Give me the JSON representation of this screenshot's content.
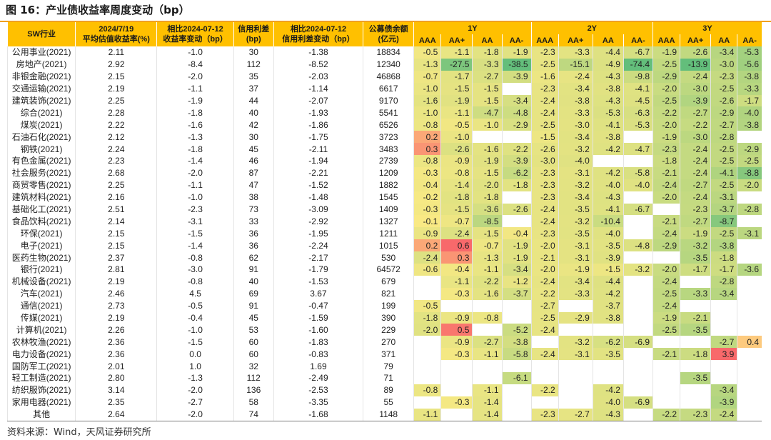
{
  "title": "图 16：产业债收益率周度变动（bp）",
  "source": "资料来源：Wind，天风证券研究所",
  "header": {
    "industry": "SW行业",
    "yield_l1": "2024/7/19",
    "yield_l2": "平均估值收益率(%)",
    "ychg_l1": "相比2024-07-12",
    "ychg_l2": "收益率变动（bp）",
    "spread_l1": "信用利差",
    "spread_l2": "(bp)",
    "schg_l1": "相比2024-07-12",
    "schg_l2": "信用利差变动（bp）",
    "bal_l1": "公募债余额",
    "bal_l2": "(亿元)",
    "groups": [
      "1Y",
      "2Y",
      "3Y"
    ],
    "ratings": [
      "AAA",
      "AA+",
      "AA",
      "AA-"
    ]
  },
  "colors": {
    "header": "#ffc000",
    "scale_min": "#63be7b",
    "scale_mid": "#ffeb84",
    "scale_max": "#f8696b"
  },
  "rows": [
    {
      "name": "公用事业(2021)",
      "yield": "2.11",
      "ychg": "-1.0",
      "spread": "30",
      "schg": "-1.38",
      "bal": "18834",
      "y1": [
        "-0.5",
        "-1.1",
        "-1.8",
        "-1.9"
      ],
      "y2": [
        "-2.3",
        "-3.3",
        "-4.4",
        "-6.7"
      ],
      "y3": [
        "-1.9",
        "-2.6",
        "-3.4",
        "-5.3"
      ]
    },
    {
      "name": "房地产(2021)",
      "yield": "2.92",
      "ychg": "-8.4",
      "spread": "112",
      "schg": "-8.52",
      "bal": "12340",
      "y1": [
        "-1.3",
        "-27.5",
        "-3.3",
        "-38.5"
      ],
      "y2": [
        "-2.5",
        "-15.1",
        "-4.9",
        "-74.4"
      ],
      "y3": [
        "-2.5",
        "-13.9",
        "-3.0",
        "-5.6"
      ]
    },
    {
      "name": "非银金融(2021)",
      "yield": "2.15",
      "ychg": "-2.0",
      "spread": "35",
      "schg": "-2.03",
      "bal": "46868",
      "y1": [
        "-0.7",
        "-1.7",
        "-2.7",
        "-3.9"
      ],
      "y2": [
        "-1.6",
        "-2.4",
        "-4.3",
        "-9.8"
      ],
      "y3": [
        "-2.9",
        "-2.4",
        "-2.3",
        "-3.8"
      ]
    },
    {
      "name": "交通运输(2021)",
      "yield": "2.19",
      "ychg": "-1.1",
      "spread": "37",
      "schg": "-1.14",
      "bal": "6617",
      "y1": [
        "-1.0",
        "-1.5",
        "-1.5",
        ""
      ],
      "y2": [
        "-2.3",
        "-3.4",
        "-3.8",
        "-4.1"
      ],
      "y3": [
        "-2.0",
        "-3.0",
        "-2.5",
        "-3.3"
      ]
    },
    {
      "name": "建筑装饰(2021)",
      "yield": "2.25",
      "ychg": "-1.9",
      "spread": "44",
      "schg": "-2.07",
      "bal": "9170",
      "y1": [
        "-1.6",
        "-1.9",
        "-1.5",
        "-3.4"
      ],
      "y2": [
        "-2.4",
        "-3.8",
        "-4.3",
        "-4.5"
      ],
      "y3": [
        "-2.5",
        "-3.9",
        "-2.6",
        "-1.7"
      ]
    },
    {
      "name": "综合(2021)",
      "yield": "2.28",
      "ychg": "-1.8",
      "spread": "40",
      "schg": "-1.93",
      "bal": "5541",
      "y1": [
        "-1.0",
        "-1.1",
        "-4.7",
        "-4.8"
      ],
      "y2": [
        "-2.4",
        "-3.3",
        "-5.3",
        "-6.3"
      ],
      "y3": [
        "-2.2",
        "-2.7",
        "-2.9",
        "-4.0"
      ]
    },
    {
      "name": "煤炭(2021)",
      "yield": "2.22",
      "ychg": "-1.6",
      "spread": "42",
      "schg": "-1.86",
      "bal": "6526",
      "y1": [
        "-0.8",
        "-0.5",
        "-1.0",
        "-2.9"
      ],
      "y2": [
        "-2.5",
        "-3.0",
        "-4.1",
        "-5.3"
      ],
      "y3": [
        "-2.0",
        "-2.2",
        "-2.7",
        "-3.8"
      ]
    },
    {
      "name": "石油石化(2021)",
      "yield": "2.12",
      "ychg": "-1.3",
      "spread": "30",
      "schg": "-1.75",
      "bal": "3723",
      "y1": [
        "0.2",
        "-1.0",
        "",
        ""
      ],
      "y2": [
        "-1.5",
        "-3.4",
        "-3.8",
        ""
      ],
      "y3": [
        "-1.9",
        "-3.0",
        "-2.8",
        ""
      ]
    },
    {
      "name": "钢铁(2021)",
      "yield": "2.24",
      "ychg": "-1.8",
      "spread": "45",
      "schg": "-2.11",
      "bal": "3483",
      "y1": [
        "0.3",
        "-2.6",
        "-1.6",
        "-2.2"
      ],
      "y2": [
        "-2.6",
        "-3.2",
        "-4.2",
        "-4.7"
      ],
      "y3": [
        "-2.3",
        "-2.4",
        "-2.5",
        "-2.9"
      ]
    },
    {
      "name": "有色金属(2021)",
      "yield": "2.23",
      "ychg": "-1.4",
      "spread": "46",
      "schg": "-1.94",
      "bal": "2739",
      "y1": [
        "-0.8",
        "-0.9",
        "-1.9",
        "-3.9"
      ],
      "y2": [
        "-3.0",
        "-4.0",
        "",
        ""
      ],
      "y3": [
        "-1.8",
        "-2.4",
        "-2.5",
        "-2.5"
      ]
    },
    {
      "name": "社会服务(2021)",
      "yield": "2.68",
      "ychg": "-2.0",
      "spread": "87",
      "schg": "-2.21",
      "bal": "1209",
      "y1": [
        "-0.3",
        "-0.8",
        "-1.5",
        "-6.2"
      ],
      "y2": [
        "-2.3",
        "-3.1",
        "-4.2",
        "-5.8"
      ],
      "y3": [
        "-2.1",
        "-2.4",
        "-4.1",
        "-8.8"
      ]
    },
    {
      "name": "商贸零售(2021)",
      "yield": "2.25",
      "ychg": "-1.1",
      "spread": "47",
      "schg": "-1.52",
      "bal": "1882",
      "y1": [
        "-0.4",
        "-1.4",
        "-2.0",
        "-1.8"
      ],
      "y2": [
        "-2.3",
        "-3.2",
        "-4.0",
        "-4.0"
      ],
      "y3": [
        "-2.4",
        "-2.7",
        "-2.5",
        "-2.0"
      ]
    },
    {
      "name": "建筑材料(2021)",
      "yield": "2.16",
      "ychg": "-1.0",
      "spread": "38",
      "schg": "-1.48",
      "bal": "1545",
      "y1": [
        "-0.2",
        "-1.8",
        "-1.8",
        ""
      ],
      "y2": [
        "-2.3",
        "-3.4",
        "-4.3",
        ""
      ],
      "y3": [
        "-2.0",
        "-2.4",
        "-3.1",
        ""
      ]
    },
    {
      "name": "基础化工(2021)",
      "yield": "2.51",
      "ychg": "-2.3",
      "spread": "73",
      "schg": "-3.09",
      "bal": "1409",
      "y1": [
        "-0.3",
        "-1.5",
        "-3.6",
        "-2.6"
      ],
      "y2": [
        "-2.4",
        "-3.5",
        "-4.1",
        "-6.7"
      ],
      "y3": [
        "",
        "-2.3",
        "-3.7",
        "-2.8"
      ]
    },
    {
      "name": "食品饮料(2021)",
      "yield": "2.14",
      "ychg": "-3.1",
      "spread": "33",
      "schg": "-2.92",
      "bal": "1327",
      "y1": [
        "-0.1",
        "-0.7",
        "-8.5",
        ""
      ],
      "y2": [
        "-2.4",
        "-3.2",
        "-10.4",
        ""
      ],
      "y3": [
        "-2.1",
        "-2.7",
        "-8.7",
        ""
      ]
    },
    {
      "name": "环保(2021)",
      "yield": "2.15",
      "ychg": "-1.5",
      "spread": "36",
      "schg": "-1.95",
      "bal": "1211",
      "y1": [
        "-0.9",
        "-2.4",
        "-1.5",
        "-0.4"
      ],
      "y2": [
        "-2.3",
        "-3.5",
        "-4.0",
        ""
      ],
      "y3": [
        "-2.4",
        "-1.9",
        "-2.5",
        "-3.1"
      ]
    },
    {
      "name": "电子(2021)",
      "yield": "2.15",
      "ychg": "-1.4",
      "spread": "36",
      "schg": "-2.24",
      "bal": "1015",
      "y1": [
        "0.2",
        "0.6",
        "-0.7",
        "-1.9"
      ],
      "y2": [
        "-2.0",
        "-3.1",
        "-3.5",
        "-4.8"
      ],
      "y3": [
        "-2.9",
        "-3.2",
        "-3.8",
        ""
      ]
    },
    {
      "name": "医药生物(2021)",
      "yield": "2.37",
      "ychg": "-0.8",
      "spread": "62",
      "schg": "-2.17",
      "bal": "530",
      "y1": [
        "-2.4",
        "0.3",
        "-1.3",
        "-1.9"
      ],
      "y2": [
        "-2.1",
        "-3.1",
        "-3.9",
        ""
      ],
      "y3": [
        "",
        "-3.5",
        "-1.8",
        ""
      ]
    },
    {
      "name": "银行(2021)",
      "yield": "2.81",
      "ychg": "-3.0",
      "spread": "91",
      "schg": "-1.79",
      "bal": "64572",
      "y1": [
        "-0.6",
        "-0.4",
        "-1.1",
        "-3.4"
      ],
      "y2": [
        "-2.0",
        "-1.9",
        "-1.5",
        "-3.2"
      ],
      "y3": [
        "-2.0",
        "-1.7",
        "-1.7",
        "-3.6"
      ]
    },
    {
      "name": "机械设备(2021)",
      "yield": "2.19",
      "ychg": "-0.8",
      "spread": "40",
      "schg": "-1.53",
      "bal": "679",
      "y1": [
        "",
        "-1.1",
        "-2.2",
        "-1.2"
      ],
      "y2": [
        "-2.4",
        "-3.4",
        "-4.4",
        ""
      ],
      "y3": [
        "-2.4",
        "",
        "-2.8",
        ""
      ]
    },
    {
      "name": "汽车(2021)",
      "yield": "2.46",
      "ychg": "4.5",
      "spread": "69",
      "schg": "3.67",
      "bal": "821",
      "y1": [
        "",
        "-0.3",
        "-1.6",
        "-3.7"
      ],
      "y2": [
        "-2.2",
        "-3.3",
        "-4.2",
        ""
      ],
      "y3": [
        "-2.5",
        "-3.3",
        "-3.4",
        ""
      ]
    },
    {
      "name": "通信(2021)",
      "yield": "2.73",
      "ychg": "-0.5",
      "spread": "91",
      "schg": "-0.47",
      "bal": "199",
      "y1": [
        "-0.5",
        "",
        "",
        ""
      ],
      "y2": [
        "-2.7",
        "",
        "-3.7",
        ""
      ],
      "y3": [
        "-2.4",
        "",
        "",
        ""
      ]
    },
    {
      "name": "传媒(2021)",
      "yield": "2.19",
      "ychg": "-0.4",
      "spread": "45",
      "schg": "-1.59",
      "bal": "390",
      "y1": [
        "-1.8",
        "-0.9",
        "-0.8",
        ""
      ],
      "y2": [
        "-2.5",
        "-2.9",
        "-3.8",
        ""
      ],
      "y3": [
        "-1.9",
        "-2.1",
        "",
        ""
      ]
    },
    {
      "name": "计算机(2021)",
      "yield": "2.26",
      "ychg": "-1.0",
      "spread": "53",
      "schg": "-1.60",
      "bal": "229",
      "y1": [
        "-2.0",
        "0.5",
        "",
        "-5.2"
      ],
      "y2": [
        "-2.4",
        "",
        "",
        ""
      ],
      "y3": [
        "-2.5",
        "-3.5",
        "",
        ""
      ]
    },
    {
      "name": "农林牧渔(2021)",
      "yield": "2.36",
      "ychg": "-1.5",
      "spread": "60",
      "schg": "-1.83",
      "bal": "270",
      "y1": [
        "",
        "-0.9",
        "-2.7",
        "-3.8"
      ],
      "y2": [
        "",
        "-3.2",
        "-6.2",
        "-6.9"
      ],
      "y3": [
        "",
        "",
        "-2.7",
        "0.4"
      ]
    },
    {
      "name": "电力设备(2021)",
      "yield": "2.36",
      "ychg": "0.0",
      "spread": "60",
      "schg": "-0.83",
      "bal": "371",
      "y1": [
        "",
        "-0.3",
        "-1.1",
        "-5.8"
      ],
      "y2": [
        "-2.4",
        "-3.1",
        "-3.5",
        ""
      ],
      "y3": [
        "-2.1",
        "-1.8",
        "3.9",
        ""
      ]
    },
    {
      "name": "国防军工(2021)",
      "yield": "2.01",
      "ychg": "1.0",
      "spread": "32",
      "schg": "1.69",
      "bal": "79",
      "y1": [
        "",
        "",
        "",
        ""
      ],
      "y2": [
        "",
        "",
        "",
        ""
      ],
      "y3": [
        "",
        "",
        "",
        ""
      ]
    },
    {
      "name": "轻工制造(2021)",
      "yield": "2.80",
      "ychg": "-1.3",
      "spread": "112",
      "schg": "-2.49",
      "bal": "71",
      "y1": [
        "",
        "",
        "",
        "-6.1"
      ],
      "y2": [
        "",
        "",
        "",
        ""
      ],
      "y3": [
        "",
        "-3.5",
        "",
        ""
      ]
    },
    {
      "name": "纺织服饰(2021)",
      "yield": "3.14",
      "ychg": "-2.0",
      "spread": "136",
      "schg": "-2.53",
      "bal": "89",
      "y1": [
        "-0.8",
        "",
        "-1.1",
        ""
      ],
      "y2": [
        "-2.2",
        "",
        "-4.2",
        ""
      ],
      "y3": [
        "",
        "",
        "-3.4",
        ""
      ]
    },
    {
      "name": "家用电器(2021)",
      "yield": "2.35",
      "ychg": "-2.7",
      "spread": "58",
      "schg": "-3.35",
      "bal": "55",
      "y1": [
        "",
        "-0.3",
        "-1.4",
        ""
      ],
      "y2": [
        "",
        "",
        "-4.0",
        "-6.9"
      ],
      "y3": [
        "",
        "",
        "-3.9",
        ""
      ]
    },
    {
      "name": "其他",
      "yield": "2.64",
      "ychg": "-2.0",
      "spread": "74",
      "schg": "-1.68",
      "bal": "1148",
      "y1": [
        "-1.1",
        "",
        "-1.4",
        ""
      ],
      "y2": [
        "-2.3",
        "-2.7",
        "-4.3",
        ""
      ],
      "y3": [
        "-2.2",
        "-2.3",
        "-2.4",
        ""
      ]
    }
  ]
}
